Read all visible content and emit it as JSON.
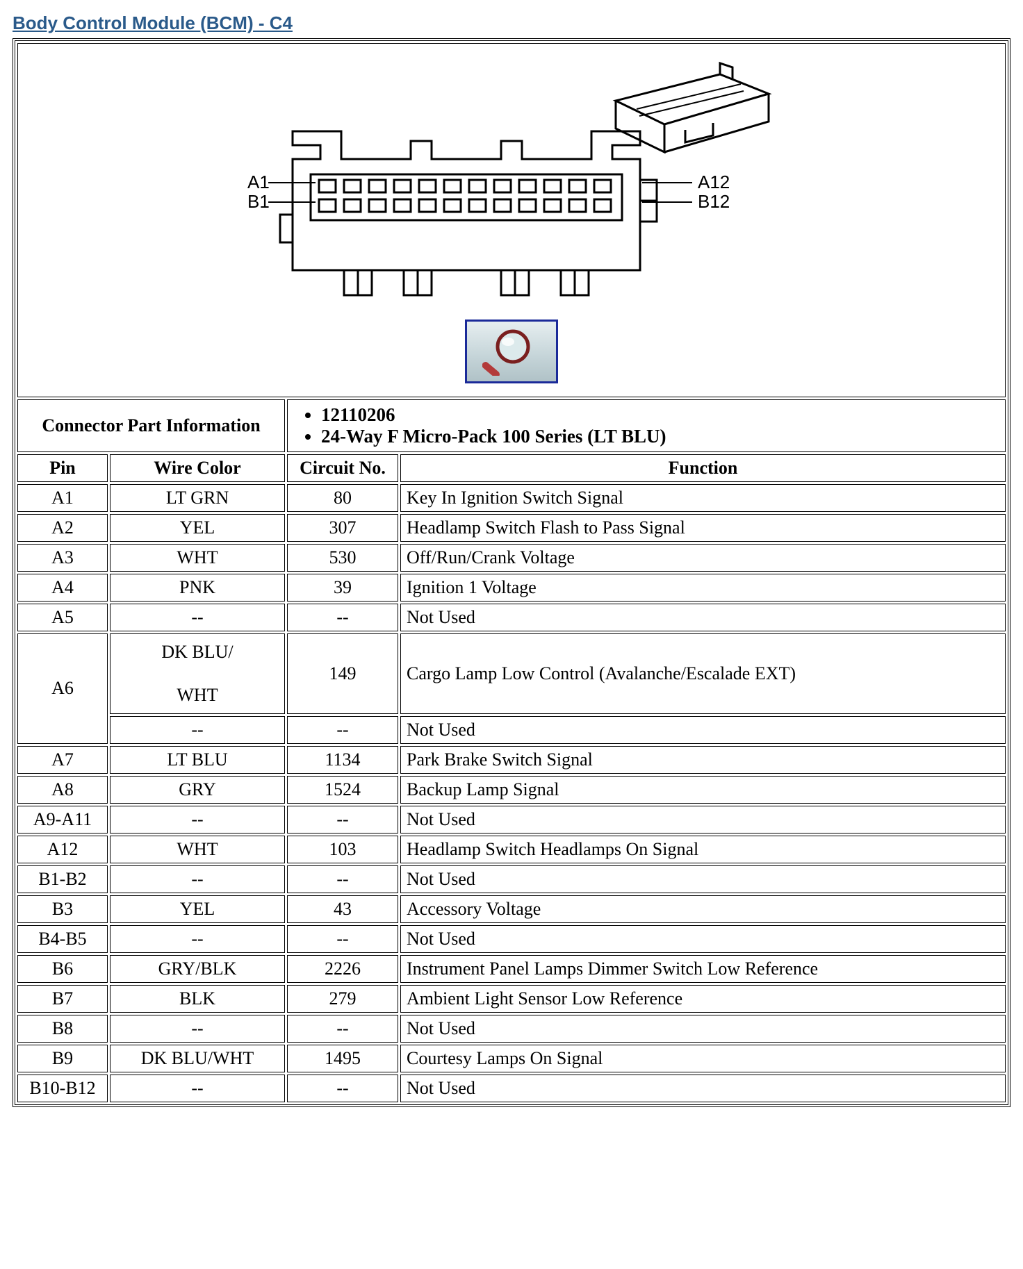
{
  "title": "Body Control Module (BCM) - C4",
  "colors": {
    "title_color": "#2a5a8a",
    "border_color": "#000000",
    "mag_border": "#1a2a99",
    "mag_bg_top": "#e6eef0",
    "mag_bg_bot": "#b0c2c7",
    "mag_glass_fill": "#dceaec",
    "mag_handle": "#b33a3a"
  },
  "diagram": {
    "labels": {
      "a_start": "A1",
      "a_end": "A12",
      "b_start": "B1",
      "b_end": "B12"
    },
    "rows": 2,
    "cols": 12
  },
  "connector_part_info": {
    "label": "Connector Part Information",
    "items": [
      "12110206",
      "24-Way F Micro-Pack 100 Series (LT BLU)"
    ]
  },
  "columns": {
    "pin": "Pin",
    "wire_color": "Wire Color",
    "circuit_no": "Circuit No.",
    "function": "Function"
  },
  "rows": [
    {
      "pin": "A1",
      "wire": "LT GRN",
      "circuit": "80",
      "fn": "Key In Ignition Switch Signal"
    },
    {
      "pin": "A2",
      "wire": "YEL",
      "circuit": "307",
      "fn": "Headlamp Switch Flash to Pass Signal"
    },
    {
      "pin": "A3",
      "wire": "WHT",
      "circuit": "530",
      "fn": "Off/Run/Crank Voltage"
    },
    {
      "pin": "A4",
      "wire": "PNK",
      "circuit": "39",
      "fn": "Ignition 1 Voltage"
    },
    {
      "pin": "A5",
      "wire": "--",
      "circuit": "--",
      "fn": "Not Used"
    }
  ],
  "a6": {
    "pin": "A6",
    "line1": {
      "wire_top": "DK BLU/",
      "wire_bot": "WHT",
      "circuit": "149",
      "fn": "Cargo Lamp Low Control (Avalanche/Escalade EXT)"
    },
    "line2": {
      "wire": "--",
      "circuit": "--",
      "fn": "Not Used"
    }
  },
  "rows2": [
    {
      "pin": "A7",
      "wire": "LT BLU",
      "circuit": "1134",
      "fn": "Park Brake Switch Signal"
    },
    {
      "pin": "A8",
      "wire": "GRY",
      "circuit": "1524",
      "fn": "Backup Lamp Signal"
    },
    {
      "pin": "A9-A11",
      "wire": "--",
      "circuit": "--",
      "fn": "Not Used"
    },
    {
      "pin": "A12",
      "wire": "WHT",
      "circuit": "103",
      "fn": "Headlamp Switch Headlamps On Signal"
    },
    {
      "pin": "B1-B2",
      "wire": "--",
      "circuit": "--",
      "fn": "Not Used"
    },
    {
      "pin": "B3",
      "wire": "YEL",
      "circuit": "43",
      "fn": "Accessory Voltage"
    },
    {
      "pin": "B4-B5",
      "wire": "--",
      "circuit": "--",
      "fn": "Not Used"
    },
    {
      "pin": "B6",
      "wire": "GRY/BLK",
      "circuit": "2226",
      "fn": "Instrument Panel Lamps Dimmer Switch Low Reference"
    },
    {
      "pin": "B7",
      "wire": "BLK",
      "circuit": "279",
      "fn": "Ambient Light Sensor Low Reference"
    },
    {
      "pin": "B8",
      "wire": "--",
      "circuit": "--",
      "fn": "Not Used"
    },
    {
      "pin": "B9",
      "wire": "DK BLU/WHT",
      "circuit": "1495",
      "fn": "Courtesy Lamps On Signal"
    },
    {
      "pin": "B10-B12",
      "wire": "--",
      "circuit": "--",
      "fn": "Not Used"
    }
  ]
}
